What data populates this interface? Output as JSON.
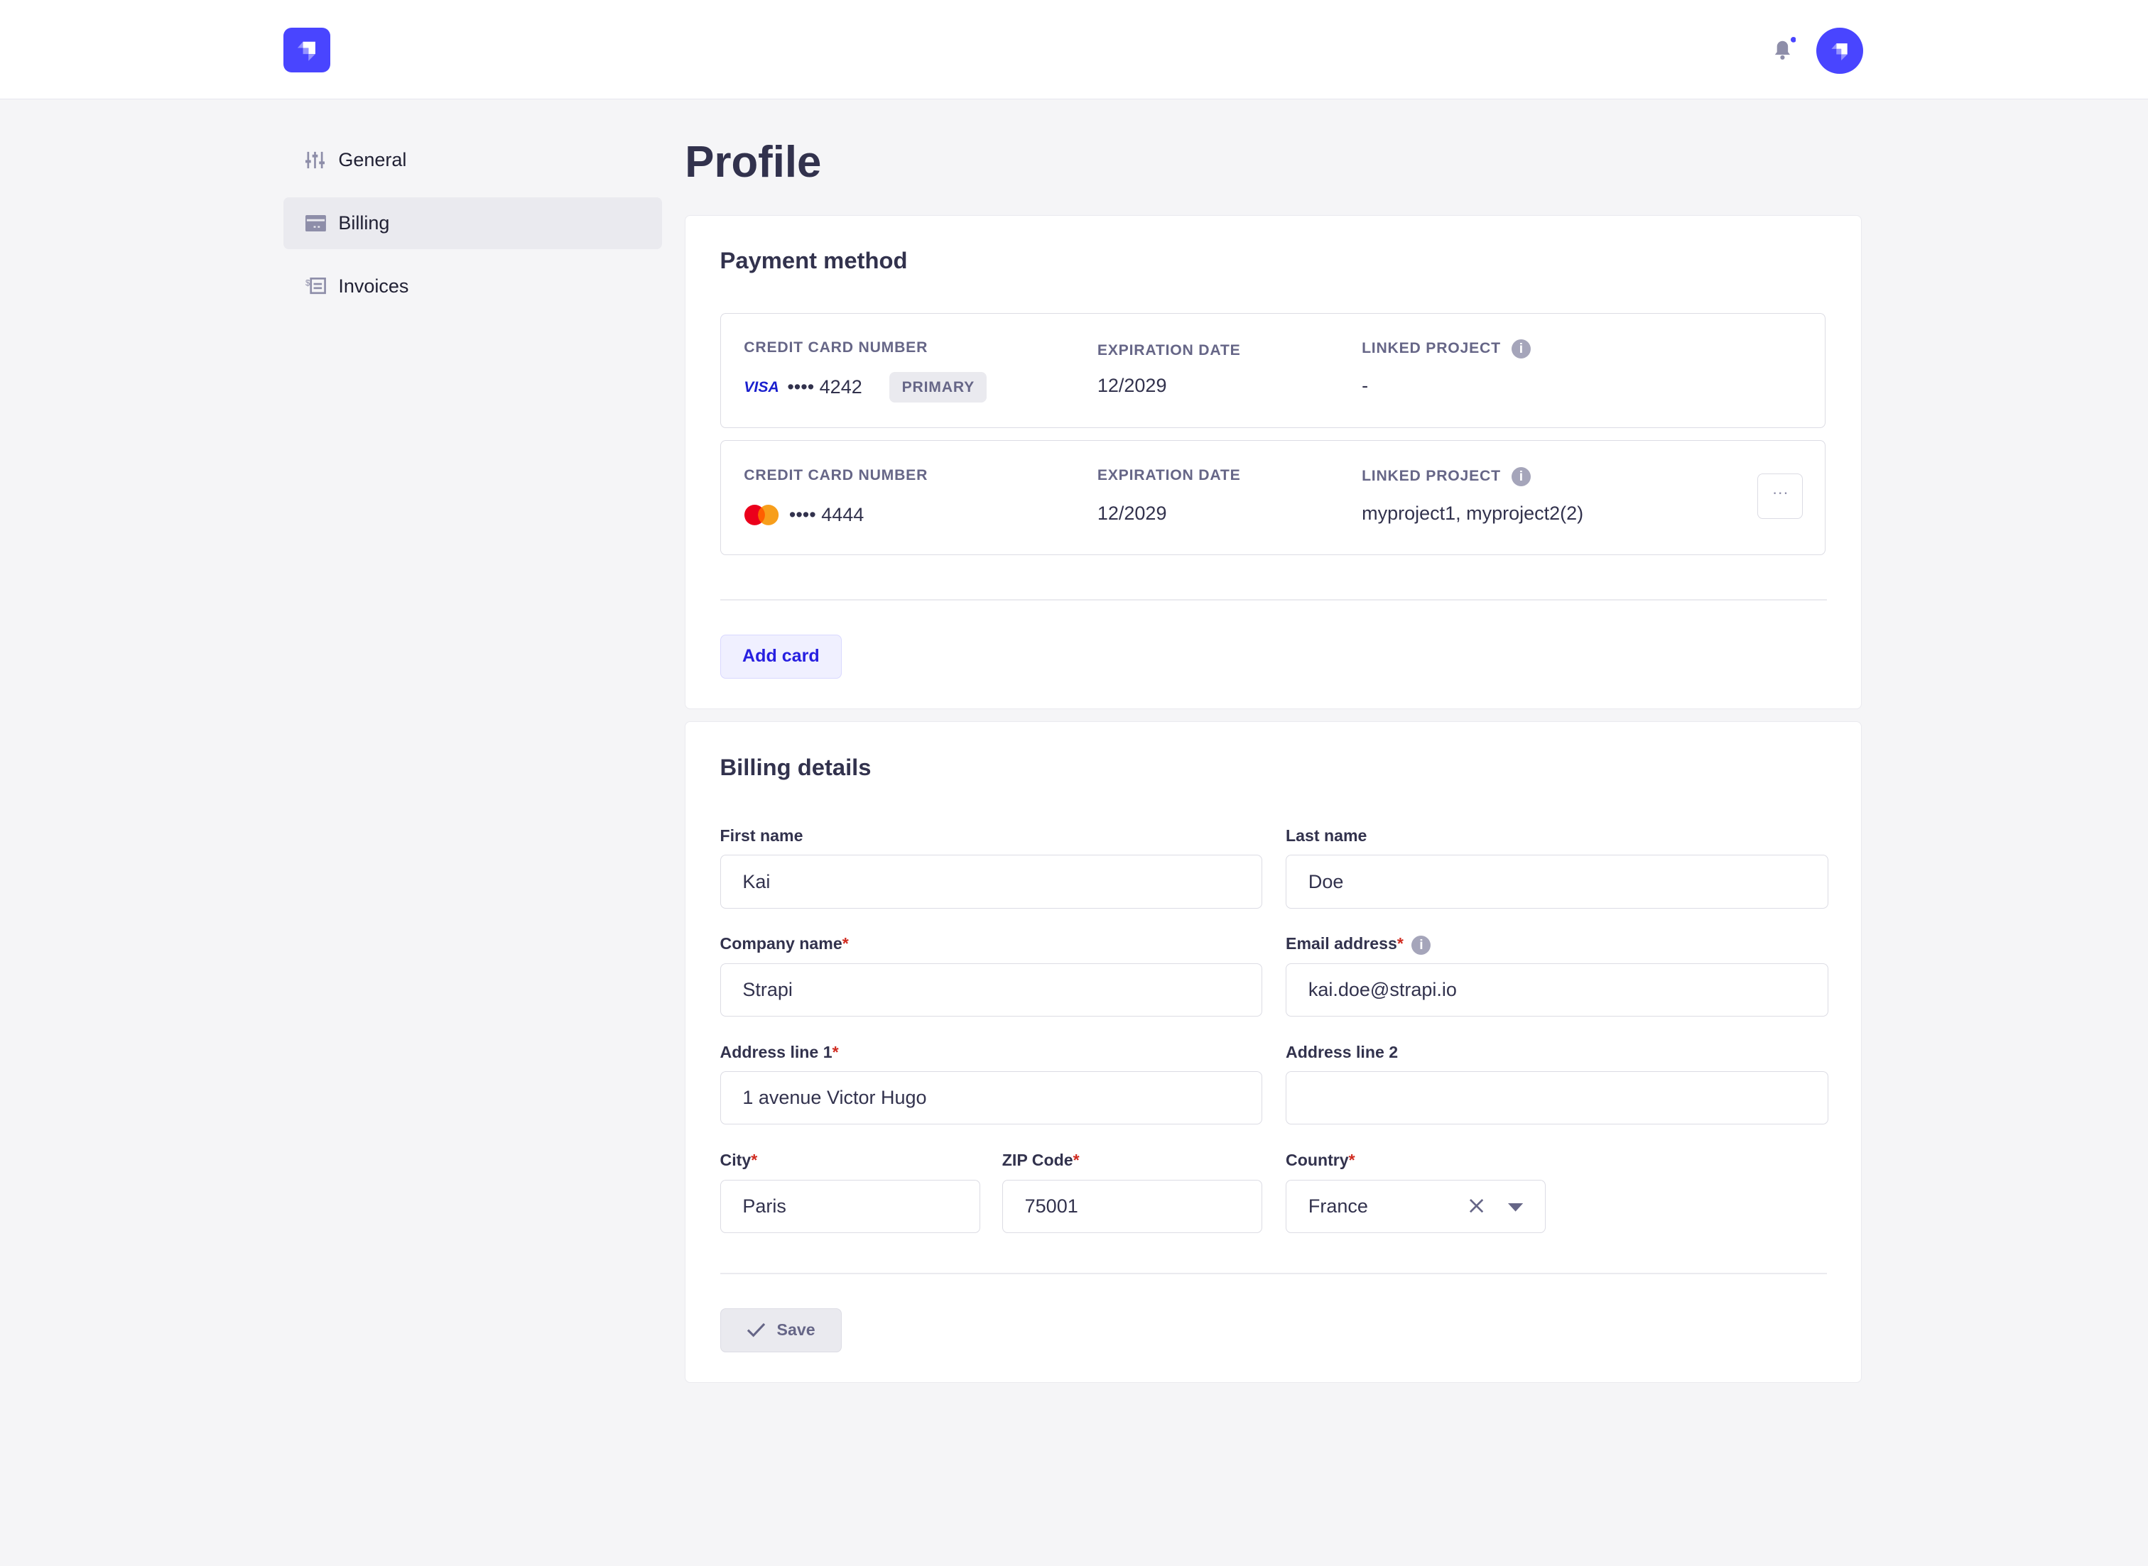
{
  "colors": {
    "brand": "#4945ff",
    "required": "#d02b20",
    "background": "#f5f5f7"
  },
  "sidebar": {
    "items": [
      {
        "label": "General",
        "icon": "sliders-icon"
      },
      {
        "label": "Billing",
        "icon": "credit-card-icon",
        "active": true
      },
      {
        "label": "Invoices",
        "icon": "invoice-icon"
      }
    ]
  },
  "page": {
    "title": "Profile"
  },
  "payment": {
    "title": "Payment method",
    "labels": {
      "card_number": "CREDIT CARD NUMBER",
      "expiration": "EXPIRATION DATE",
      "linked": "LINKED PROJECT"
    },
    "cards": [
      {
        "brand": "VISA",
        "masked": "•••• 4242",
        "badge": "PRIMARY",
        "expiration": "12/2029",
        "linked": "-"
      },
      {
        "brand": "mastercard",
        "masked": "•••• 4444",
        "expiration": "12/2029",
        "linked": "myproject1, myproject2(2)",
        "more": "···"
      }
    ],
    "add_label": "Add card"
  },
  "billing": {
    "title": "Billing details",
    "fields": {
      "first_name": {
        "label": "First name",
        "value": "Kai"
      },
      "last_name": {
        "label": "Last name",
        "value": "Doe"
      },
      "company": {
        "label": "Company name",
        "value": "Strapi"
      },
      "email": {
        "label": "Email address",
        "value": "kai.doe@strapi.io"
      },
      "address1": {
        "label": "Address line 1",
        "value": "1 avenue Victor Hugo"
      },
      "address2": {
        "label": "Address line 2",
        "value": ""
      },
      "city": {
        "label": "City",
        "value": "Paris"
      },
      "zip": {
        "label": "ZIP Code",
        "value": "75001"
      },
      "country": {
        "label": "Country",
        "value": "France"
      }
    },
    "required_mark": "*",
    "save_label": "Save"
  }
}
